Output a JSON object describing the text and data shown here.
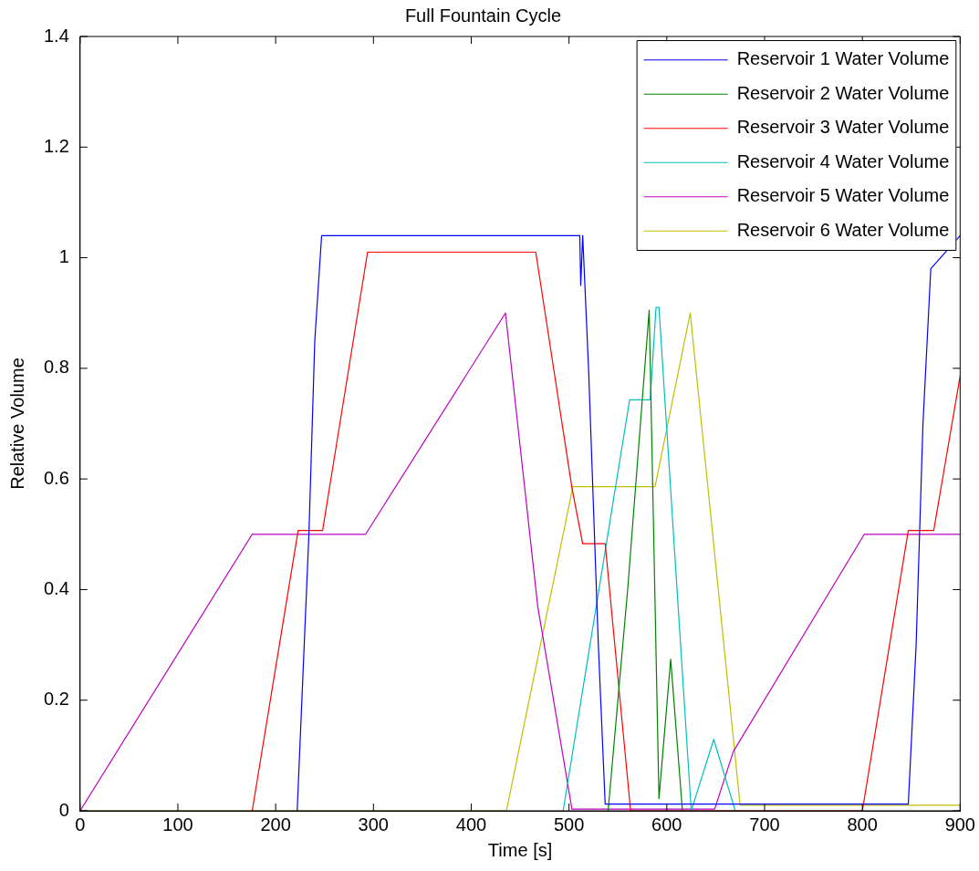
{
  "chart_data": {
    "type": "line",
    "title": "Full Fountain Cycle",
    "xlabel": "Time [s]",
    "ylabel": "Relative Volume",
    "xlim": [
      0,
      900
    ],
    "ylim": [
      0,
      1.4
    ],
    "xticks": [
      0,
      100,
      200,
      300,
      400,
      500,
      600,
      700,
      800,
      900
    ],
    "yticks": [
      0,
      0.2,
      0.4,
      0.6,
      0.8,
      1,
      1.2,
      1.4
    ],
    "grid": false,
    "legend": "top right",
    "marker": "none",
    "line_style": "solid",
    "series": [
      {
        "name": "Reservoir 1 Water Volume",
        "color": "#0000ff",
        "x": [
          222,
          228,
          234,
          240,
          247,
          511,
          512,
          514,
          520,
          525,
          530,
          537,
          847,
          855,
          862,
          870,
          900
        ],
        "values": [
          0,
          0.25,
          0.5,
          0.85,
          1.04,
          1.04,
          0.95,
          1.04,
          0.8,
          0.55,
          0.3,
          0.012,
          0.012,
          0.3,
          0.7,
          0.98,
          1.04
        ]
      },
      {
        "name": "Reservoir 2 Water Volume",
        "color": "#008000",
        "x": [
          540,
          560,
          582,
          592,
          604,
          616
        ],
        "values": [
          0,
          0.4,
          0.905,
          0.022,
          0.274,
          0
        ]
      },
      {
        "name": "Reservoir 3 Water Volume",
        "color": "#ff0000",
        "x": [
          176,
          223,
          248,
          294,
          466,
          503,
          514,
          537,
          563,
          800,
          847,
          873,
          900
        ],
        "values": [
          0,
          0.507,
          0.507,
          1.01,
          1.01,
          0.584,
          0.483,
          0.483,
          0,
          0,
          0.507,
          0.507,
          0.786
        ]
      },
      {
        "name": "Reservoir 4 Water Volume",
        "color": "#00bfbf",
        "x": [
          494,
          562,
          583,
          589,
          592,
          625,
          648,
          670
        ],
        "values": [
          0,
          0.743,
          0.743,
          0.91,
          0.91,
          0,
          0.129,
          0
        ]
      },
      {
        "name": "Reservoir 5 Water Volume",
        "color": "#bf00bf",
        "x": [
          0,
          176,
          292,
          435,
          468,
          503,
          649,
          668,
          802,
          900
        ],
        "values": [
          0,
          0.5,
          0.5,
          0.9,
          0.37,
          0.003,
          0.003,
          0.107,
          0.5,
          0.5
        ]
      },
      {
        "name": "Reservoir 6 Water Volume",
        "color": "#bfbf00",
        "x": [
          0,
          436,
          504,
          588,
          624,
          675,
          900
        ],
        "values": [
          0,
          0,
          0.586,
          0.586,
          0.9,
          0.01,
          0.01
        ]
      }
    ]
  }
}
